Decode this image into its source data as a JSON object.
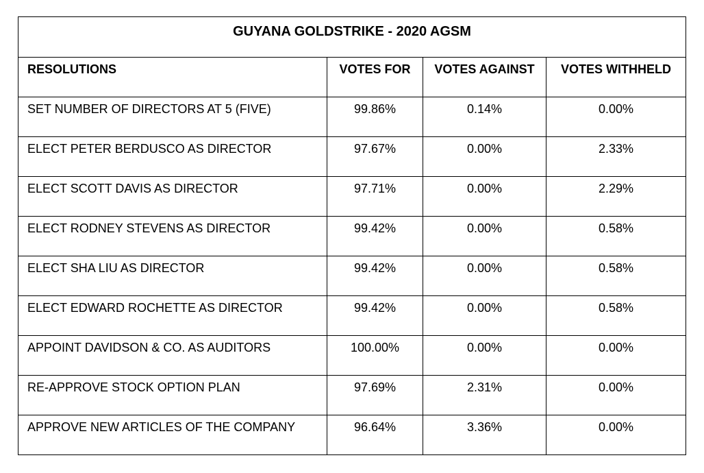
{
  "title": "GUYANA GOLDSTRIKE - 2020 AGSM",
  "headers": {
    "resolutions": "RESOLUTIONS",
    "votes_for": "VOTES FOR",
    "votes_against": "VOTES AGAINST",
    "votes_withheld": "VOTES WITHHELD"
  },
  "rows": [
    {
      "resolution": "SET NUMBER OF DIRECTORS AT 5 (FIVE)",
      "for": "99.86%",
      "against": "0.14%",
      "withheld": "0.00%"
    },
    {
      "resolution": "ELECT PETER BERDUSCO AS DIRECTOR",
      "for": "97.67%",
      "against": "0.00%",
      "withheld": "2.33%"
    },
    {
      "resolution": "ELECT SCOTT DAVIS AS DIRECTOR",
      "for": "97.71%",
      "against": "0.00%",
      "withheld": "2.29%"
    },
    {
      "resolution": "ELECT RODNEY STEVENS AS DIRECTOR",
      "for": "99.42%",
      "against": "0.00%",
      "withheld": "0.58%"
    },
    {
      "resolution": "ELECT SHA LIU AS DIRECTOR",
      "for": "99.42%",
      "against": "0.00%",
      "withheld": "0.58%"
    },
    {
      "resolution": "ELECT EDWARD ROCHETTE AS DIRECTOR",
      "for": "99.42%",
      "against": "0.00%",
      "withheld": "0.58%"
    },
    {
      "resolution": "APPOINT DAVIDSON & CO. AS AUDITORS",
      "for": "100.00%",
      "against": "0.00%",
      "withheld": "0.00%"
    },
    {
      "resolution": "RE-APPROVE STOCK OPTION PLAN",
      "for": "97.69%",
      "against": "2.31%",
      "withheld": "0.00%"
    },
    {
      "resolution": "APPROVE NEW ARTICLES OF THE COMPANY",
      "for": "96.64%",
      "against": "3.36%",
      "withheld": "0.00%"
    }
  ]
}
